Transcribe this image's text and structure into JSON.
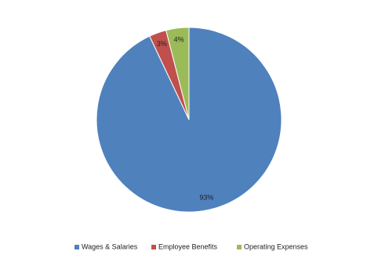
{
  "chart_data": {
    "type": "pie",
    "categories": [
      "Wages & Salaries",
      "Employee Benefits",
      "Operating Expenses"
    ],
    "values": [
      93,
      3,
      4
    ],
    "value_labels": [
      "93%",
      "3%",
      "4%"
    ],
    "colors": [
      "#4f81bd",
      "#c0504d",
      "#9bbb59"
    ],
    "legend": "bottom"
  }
}
